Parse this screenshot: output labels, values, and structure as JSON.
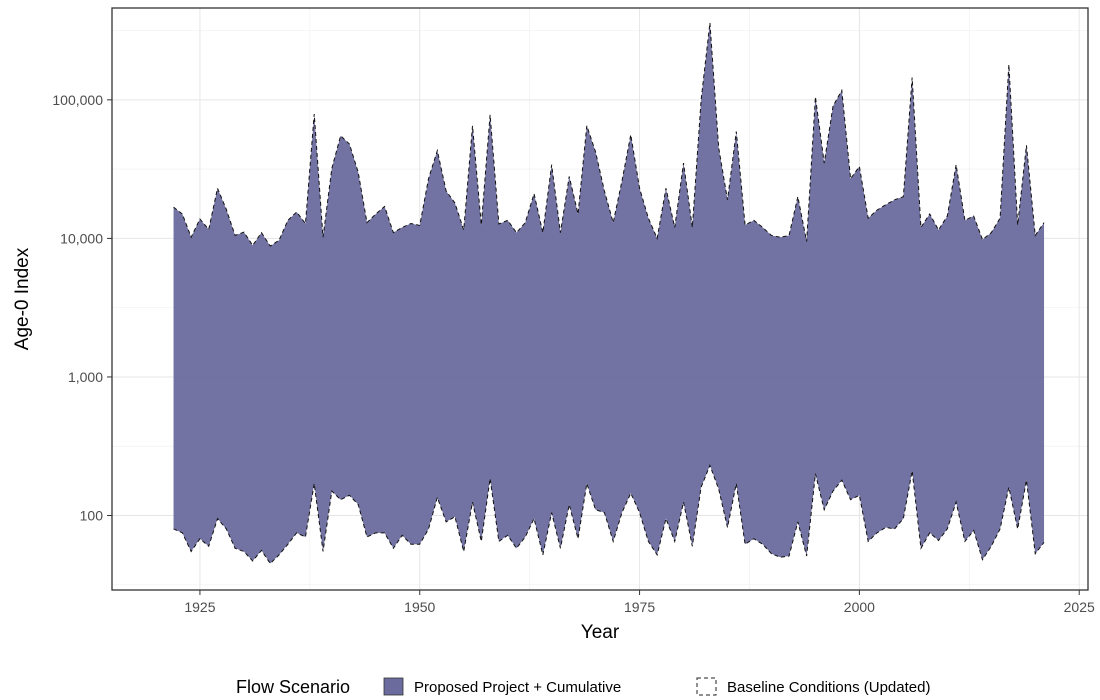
{
  "chart_data": {
    "type": "area",
    "xlabel": "Year",
    "ylabel": "Age-0 Index",
    "y_scale": "log10",
    "xlim": [
      1915,
      2026
    ],
    "ylim": [
      29,
      460000
    ],
    "x_ticks": [
      1925,
      1950,
      1975,
      2000,
      2025
    ],
    "x_tick_labels": [
      "1925",
      "1950",
      "1975",
      "2000",
      "2025"
    ],
    "y_ticks": [
      100,
      1000,
      10000,
      100000
    ],
    "y_tick_labels": [
      "100",
      "1,000",
      "10,000",
      "100,000"
    ],
    "grid": true,
    "legend": {
      "title": "Flow Scenario",
      "position": "bottom",
      "entries": [
        {
          "label": "Proposed Project + Cumulative",
          "style": "filled",
          "color": "#6b6b9e"
        },
        {
          "label": "Baseline Conditions (Updated)",
          "style": "dashed-outline",
          "color": "#000000"
        }
      ]
    },
    "series": [
      {
        "name": "Proposed Project + Cumulative",
        "style": "ribbon-fill",
        "color": "#6b6b9e",
        "x": [
          1922,
          1923,
          1924,
          1925,
          1926,
          1927,
          1928,
          1929,
          1930,
          1931,
          1932,
          1933,
          1934,
          1935,
          1936,
          1937,
          1938,
          1939,
          1940,
          1941,
          1942,
          1943,
          1944,
          1945,
          1946,
          1947,
          1948,
          1949,
          1950,
          1951,
          1952,
          1953,
          1954,
          1955,
          1956,
          1957,
          1958,
          1959,
          1960,
          1961,
          1962,
          1963,
          1964,
          1965,
          1966,
          1967,
          1968,
          1969,
          1970,
          1971,
          1972,
          1973,
          1974,
          1975,
          1976,
          1977,
          1978,
          1979,
          1980,
          1981,
          1982,
          1983,
          1984,
          1985,
          1986,
          1987,
          1988,
          1989,
          1990,
          1991,
          1992,
          1993,
          1994,
          1995,
          1996,
          1997,
          1998,
          1999,
          2000,
          2001,
          2002,
          2003,
          2004,
          2005,
          2006,
          2007,
          2008,
          2009,
          2010,
          2011,
          2012,
          2013,
          2014,
          2015,
          2016,
          2017,
          2018,
          2019,
          2020,
          2021
        ],
        "upper": [
          16800,
          15000,
          10200,
          13800,
          11600,
          23000,
          16200,
          10500,
          11100,
          8900,
          11000,
          8800,
          9700,
          13500,
          15500,
          12800,
          79000,
          10200,
          32000,
          55000,
          48000,
          30000,
          13000,
          15000,
          17000,
          11000,
          12000,
          12800,
          12400,
          27000,
          43000,
          22000,
          18000,
          11500,
          65000,
          12500,
          78000,
          12700,
          13500,
          11000,
          13000,
          21000,
          11000,
          34000,
          11000,
          28000,
          15000,
          65000,
          42000,
          22000,
          13000,
          26000,
          56000,
          23000,
          14000,
          10000,
          23000,
          12000,
          35000,
          12000,
          100000,
          360000,
          45000,
          19000,
          59000,
          12500,
          13500,
          12000,
          10500,
          10200,
          10500,
          20000,
          9500,
          105000,
          35000,
          90000,
          117000,
          27000,
          33000,
          14000,
          16000,
          17500,
          19000,
          20000,
          145000,
          12000,
          15000,
          11500,
          14500,
          34000,
          13500,
          14500,
          9800,
          11000,
          14000,
          180000,
          12500,
          47000,
          10500,
          13000
        ],
        "lower": [
          80,
          75,
          55,
          68,
          60,
          95,
          80,
          58,
          55,
          47,
          56,
          45,
          52,
          62,
          75,
          70,
          170,
          55,
          150,
          130,
          140,
          120,
          70,
          75,
          75,
          58,
          72,
          62,
          62,
          80,
          135,
          90,
          98,
          55,
          125,
          65,
          185,
          65,
          72,
          58,
          70,
          95,
          52,
          105,
          58,
          120,
          68,
          170,
          110,
          105,
          65,
          105,
          145,
          105,
          65,
          52,
          95,
          65,
          125,
          60,
          160,
          230,
          155,
          82,
          170,
          62,
          68,
          62,
          53,
          50,
          51,
          90,
          51,
          200,
          110,
          150,
          180,
          130,
          140,
          65,
          75,
          82,
          80,
          95,
          210,
          58,
          75,
          66,
          80,
          125,
          65,
          78,
          48,
          60,
          80,
          160,
          80,
          180,
          53,
          64
        ]
      },
      {
        "name": "Baseline Conditions (Updated)",
        "style": "dashed-ribbon-outline",
        "color": "#000000",
        "same_extent_as": "Proposed Project + Cumulative"
      }
    ]
  }
}
